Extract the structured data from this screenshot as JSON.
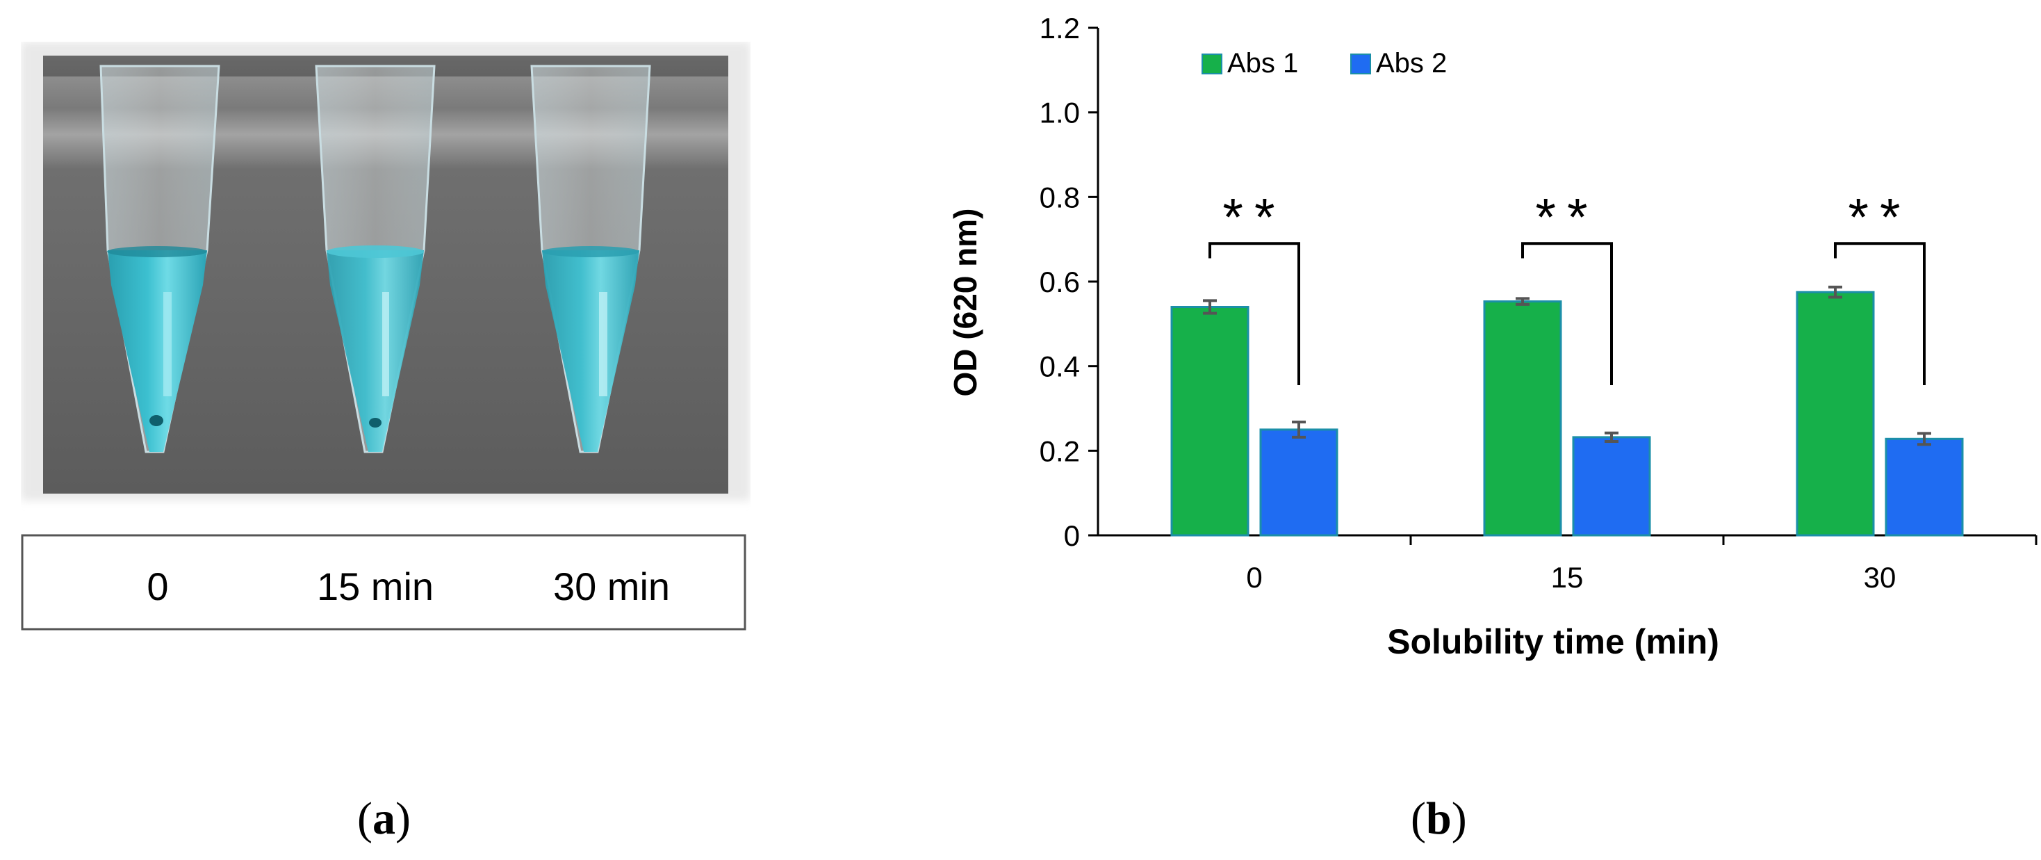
{
  "panel_a": {
    "label": "a",
    "tube_labels": [
      "0",
      "15 min",
      "30 min"
    ]
  },
  "panel_b": {
    "label": "b"
  },
  "colors": {
    "series_abs1": "#16b04a",
    "series_abs2": "#1f6cf2",
    "bar_outline": "#1b8fa8",
    "liquid": "#2fb3c6"
  },
  "chart_data": {
    "type": "bar",
    "title": "",
    "xlabel": "Solubility time (min)",
    "ylabel": "OD (620 nm)",
    "categories": [
      "0",
      "15",
      "30"
    ],
    "ylim": [
      0,
      1.2
    ],
    "yticks": [
      "0",
      "0.2",
      "0.4",
      "0.6",
      "0.8",
      "1.0",
      "1.2"
    ],
    "legend_position": "top-left",
    "grid": false,
    "series": [
      {
        "name": "Abs 1",
        "values": [
          0.54,
          0.553,
          0.575
        ],
        "errors": [
          0.015,
          0.007,
          0.012
        ]
      },
      {
        "name": "Abs 2",
        "values": [
          0.25,
          0.232,
          0.228
        ],
        "errors": [
          0.018,
          0.01,
          0.013
        ]
      }
    ],
    "annotations": [
      "**",
      "**",
      "**"
    ]
  }
}
